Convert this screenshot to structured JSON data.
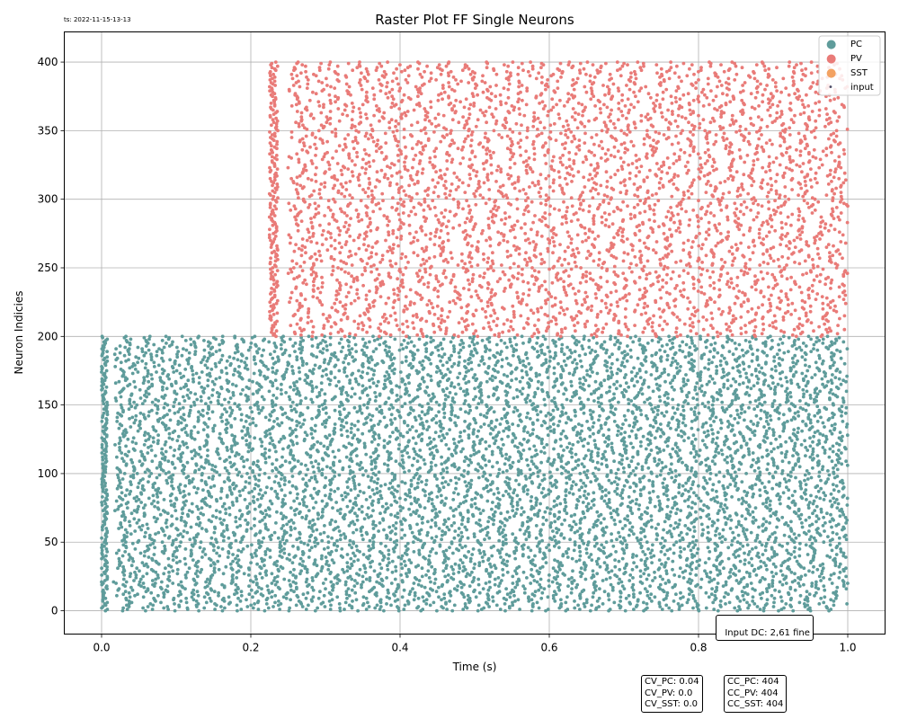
{
  "timestamp": "ts: 2022-11-15-13-13",
  "legend_markers": {
    "PC": "●",
    "PV": "●",
    "SST": "●",
    "input": "•"
  },
  "colors": {
    "PC": "#5f9c9b",
    "PV": "#e97b78",
    "SST": "#f3a262",
    "input": "#4c4c66",
    "grid": "#b0b0b0"
  },
  "annotations": {
    "input_dc": "Input DC: 2,61 fine",
    "cv": [
      "CV_PC: 0.04",
      "CV_PV: 0.0",
      "CV_SST: 0.0"
    ],
    "cc": [
      "CC_PC: 404",
      "CC_PV: 404",
      "CC_SST: 404"
    ]
  },
  "chart_data": {
    "type": "scatter",
    "title": "Raster Plot FF Single Neurons",
    "xlabel": "Time (s)",
    "ylabel": "Neuron Indicies",
    "xlim": [
      -0.05,
      1.05
    ],
    "ylim": [
      -17,
      422
    ],
    "xticks": [
      0.0,
      0.2,
      0.4,
      0.6,
      0.8,
      1.0
    ],
    "xtick_labels": [
      "0.0",
      "0.2",
      "0.4",
      "0.6",
      "0.8",
      "1.0"
    ],
    "yticks": [
      0,
      50,
      100,
      150,
      200,
      250,
      300,
      350,
      400
    ],
    "ytick_labels": [
      "0",
      "50",
      "100",
      "150",
      "200",
      "250",
      "300",
      "350",
      "400"
    ],
    "grid": true,
    "legend_position": "top-right",
    "series": [
      {
        "name": "PC",
        "neuron_range": [
          0,
          200
        ],
        "time_range": [
          0.0,
          1.0
        ],
        "approx_rate_hz": 38
      },
      {
        "name": "PV",
        "neuron_range": [
          200,
          400
        ],
        "time_range": [
          0.225,
          1.0
        ],
        "approx_rate_hz": 27
      },
      {
        "name": "SST",
        "neuron_range": [],
        "time_range": [],
        "approx_rate_hz": 0
      },
      {
        "name": "input",
        "neuron_range": [],
        "time_range": [],
        "approx_rate_hz": 0
      }
    ]
  }
}
